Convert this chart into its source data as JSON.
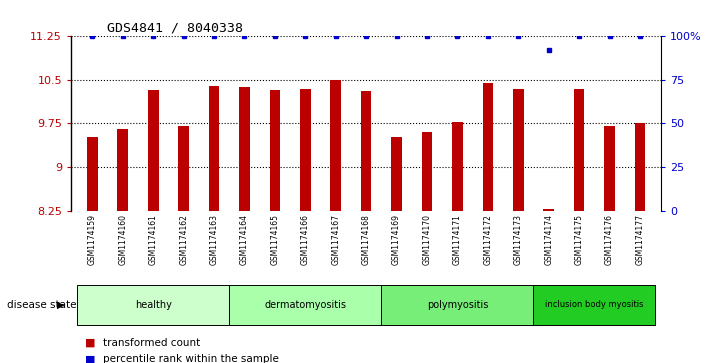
{
  "title": "GDS4841 / 8040338",
  "samples": [
    "GSM1174159",
    "GSM1174160",
    "GSM1174161",
    "GSM1174162",
    "GSM1174163",
    "GSM1174164",
    "GSM1174165",
    "GSM1174166",
    "GSM1174167",
    "GSM1174168",
    "GSM1174169",
    "GSM1174170",
    "GSM1174171",
    "GSM1174172",
    "GSM1174173",
    "GSM1174174",
    "GSM1174175",
    "GSM1174176",
    "GSM1174177"
  ],
  "bar_values": [
    9.52,
    9.65,
    10.32,
    9.7,
    10.4,
    10.38,
    10.32,
    10.35,
    10.5,
    10.3,
    9.52,
    9.6,
    9.78,
    10.44,
    10.35,
    8.27,
    10.35,
    9.7,
    9.76
  ],
  "percentile_values": [
    100,
    100,
    100,
    100,
    100,
    100,
    100,
    100,
    100,
    100,
    100,
    100,
    100,
    100,
    100,
    92,
    100,
    100,
    100
  ],
  "bar_color": "#bb0000",
  "percentile_color": "#0000cc",
  "ylim_left": [
    8.25,
    11.25
  ],
  "ylim_right": [
    0,
    100
  ],
  "yticks_left": [
    8.25,
    9.0,
    9.75,
    10.5,
    11.25
  ],
  "ytick_labels_left": [
    "8.25",
    "9",
    "9.75",
    "10.5",
    "11.25"
  ],
  "yticks_right": [
    0,
    25,
    50,
    75,
    100
  ],
  "ytick_labels_right": [
    "0",
    "25",
    "50",
    "75",
    "100%"
  ],
  "groups": [
    {
      "label": "healthy",
      "start": 0,
      "end": 4,
      "color": "#ccffcc"
    },
    {
      "label": "dermatomyositis",
      "start": 5,
      "end": 9,
      "color": "#aaffaa"
    },
    {
      "label": "polymyositis",
      "start": 10,
      "end": 14,
      "color": "#77ee77"
    },
    {
      "label": "inclusion body myositis",
      "start": 15,
      "end": 18,
      "color": "#22cc22"
    }
  ],
  "disease_state_label": "disease state",
  "legend_bar_label": "transformed count",
  "legend_dot_label": "percentile rank within the sample",
  "bg_color": "#ffffff",
  "tick_area_color": "#c8c8c8",
  "grid_color": "#000000",
  "spine_color": "#000000"
}
